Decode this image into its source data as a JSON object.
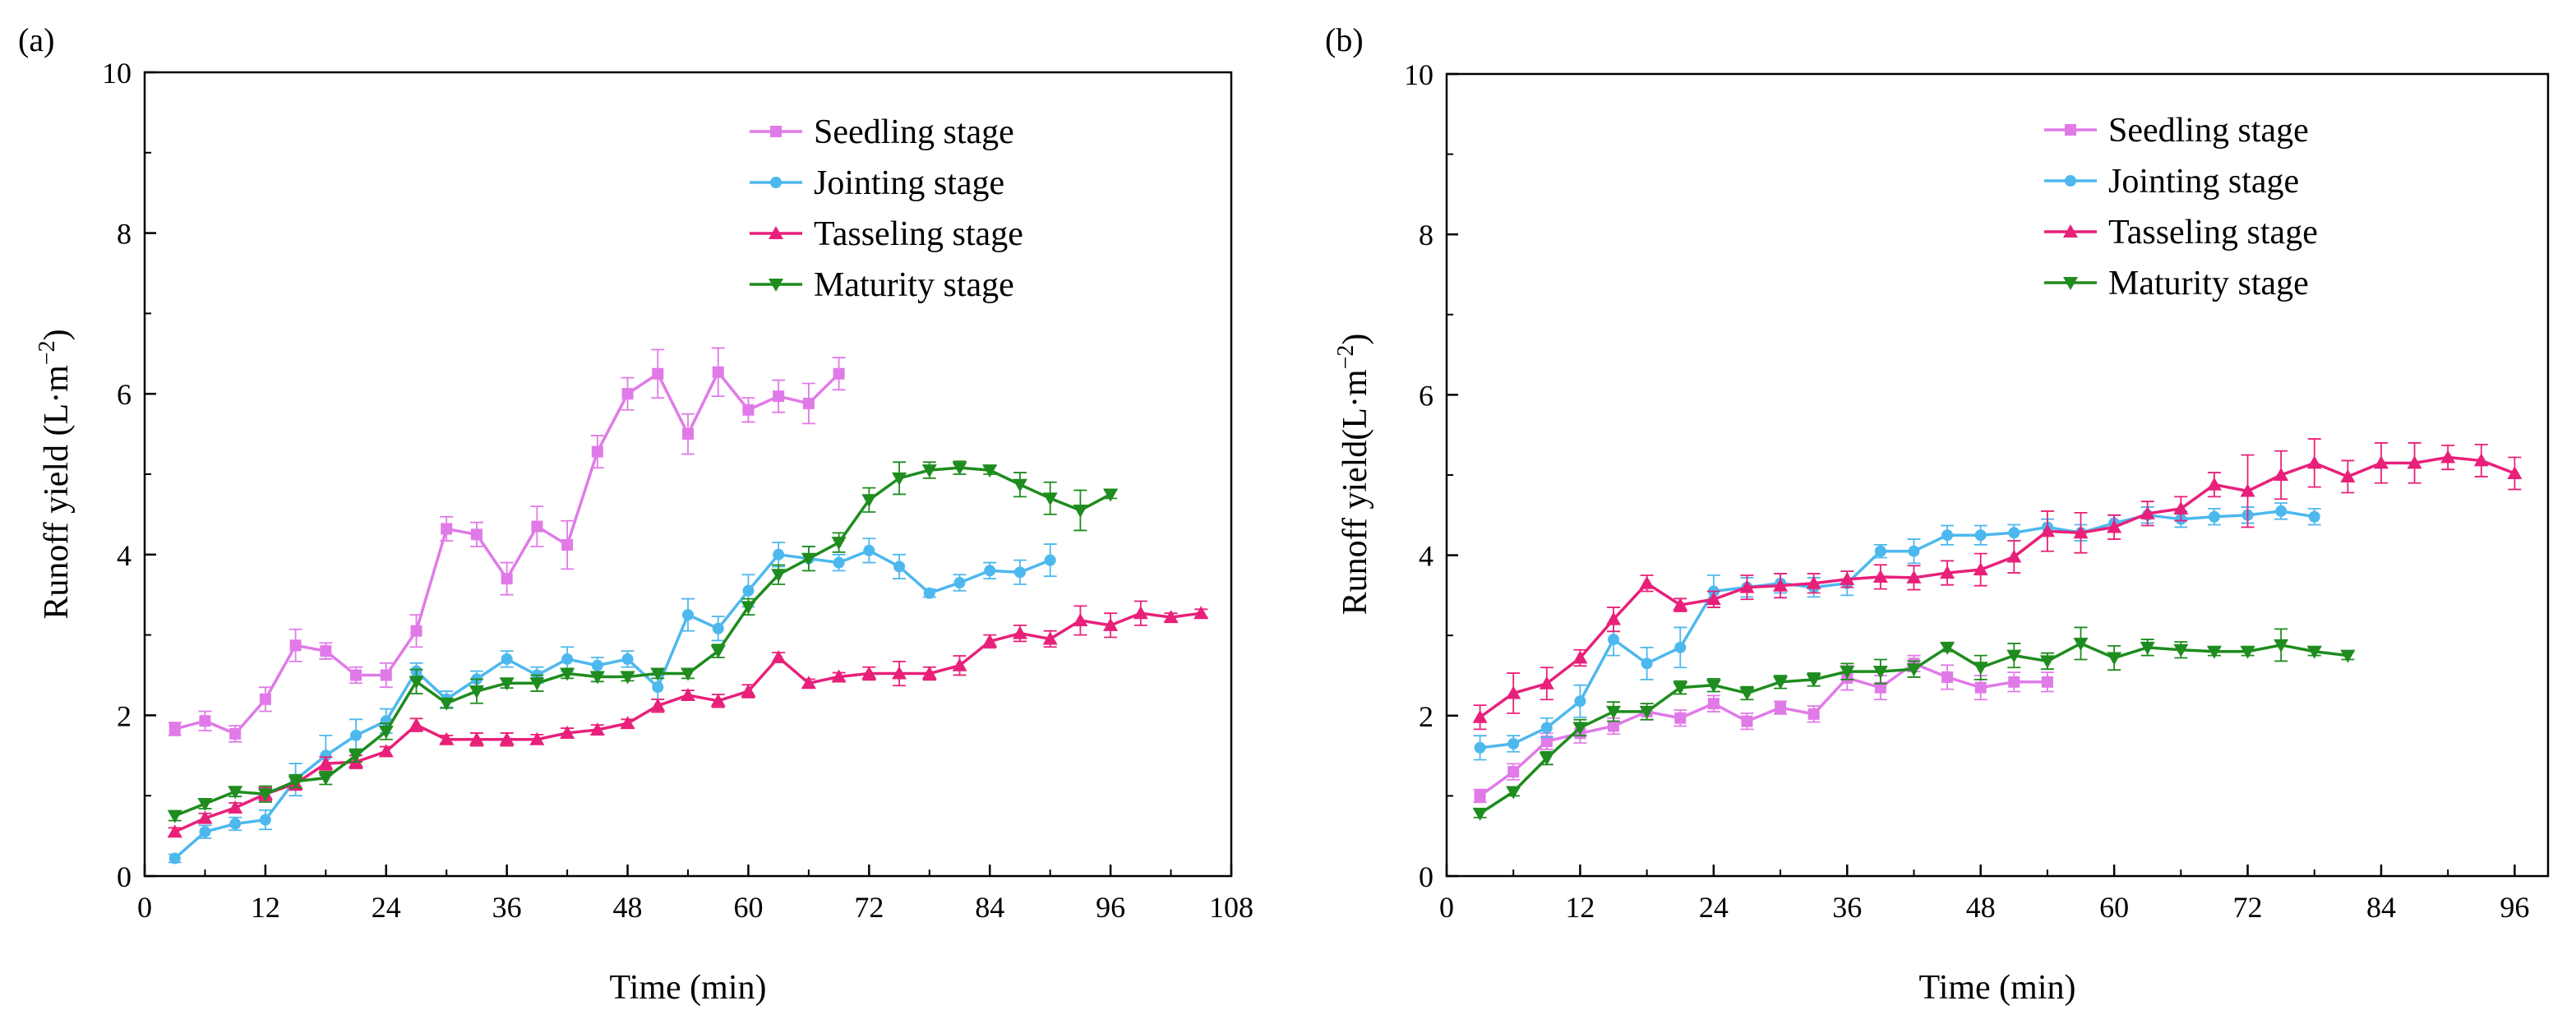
{
  "chart_data": [
    {
      "type": "line",
      "panel_label": "(a)",
      "xlabel": "Time (min)",
      "ylabel_main": "Runoff yield (L·m",
      "ylabel_sup": "−2",
      "ylabel_close": ")",
      "xlim": [
        0,
        108
      ],
      "ylim": [
        0,
        10
      ],
      "xticks": [
        0,
        12,
        24,
        36,
        48,
        60,
        72,
        84,
        96,
        108
      ],
      "yticks": [
        0,
        2,
        4,
        6,
        8,
        10
      ],
      "legend": "top-right",
      "series": [
        {
          "name": "Seedling stage",
          "color": "#e07ae8",
          "marker": "square",
          "x": [
            3,
            6,
            9,
            12,
            15,
            18,
            21,
            24,
            27,
            30,
            33,
            36,
            39,
            42,
            45,
            48,
            51,
            54,
            57,
            60,
            63,
            66,
            69
          ],
          "y": [
            1.83,
            1.93,
            1.77,
            2.2,
            2.87,
            2.8,
            2.5,
            2.5,
            3.05,
            4.32,
            4.25,
            3.7,
            4.35,
            4.12,
            5.28,
            6.0,
            6.25,
            5.5,
            6.27,
            5.8,
            5.97,
            5.88,
            6.25
          ],
          "err": [
            0.08,
            0.12,
            0.1,
            0.15,
            0.2,
            0.1,
            0.1,
            0.15,
            0.2,
            0.15,
            0.15,
            0.2,
            0.25,
            0.3,
            0.2,
            0.2,
            0.3,
            0.25,
            0.3,
            0.15,
            0.2,
            0.25,
            0.2
          ]
        },
        {
          "name": "Jointing stage",
          "color": "#4db8ee",
          "marker": "circle",
          "x": [
            3,
            6,
            9,
            12,
            15,
            18,
            21,
            24,
            27,
            30,
            33,
            36,
            39,
            42,
            45,
            48,
            51,
            54,
            57,
            60,
            63,
            66,
            69,
            72,
            75,
            78,
            81,
            84,
            87,
            90
          ],
          "y": [
            0.22,
            0.55,
            0.65,
            0.7,
            1.2,
            1.5,
            1.75,
            1.93,
            2.55,
            2.2,
            2.45,
            2.7,
            2.5,
            2.7,
            2.62,
            2.7,
            2.35,
            3.25,
            3.08,
            3.55,
            4.0,
            3.95,
            3.9,
            4.05,
            3.85,
            3.52,
            3.65,
            3.8,
            3.78,
            3.93
          ],
          "err": [
            0.05,
            0.08,
            0.08,
            0.12,
            0.2,
            0.25,
            0.2,
            0.15,
            0.1,
            0.1,
            0.1,
            0.1,
            0.1,
            0.15,
            0.1,
            0.1,
            0.15,
            0.2,
            0.15,
            0.2,
            0.15,
            0.15,
            0.1,
            0.15,
            0.15,
            0.05,
            0.1,
            0.1,
            0.15,
            0.2
          ]
        },
        {
          "name": "Tasseling stage",
          "color": "#e8207a",
          "marker": "triangle-up",
          "x": [
            3,
            6,
            9,
            12,
            15,
            18,
            21,
            24,
            27,
            30,
            33,
            36,
            39,
            42,
            45,
            48,
            51,
            54,
            57,
            60,
            63,
            66,
            69,
            72,
            75,
            78,
            81,
            84,
            87,
            90,
            93,
            96,
            99,
            102,
            105
          ],
          "y": [
            0.55,
            0.72,
            0.85,
            1.02,
            1.15,
            1.4,
            1.42,
            1.55,
            1.88,
            1.7,
            1.7,
            1.7,
            1.7,
            1.78,
            1.82,
            1.9,
            2.12,
            2.25,
            2.18,
            2.3,
            2.72,
            2.4,
            2.48,
            2.52,
            2.52,
            2.52,
            2.62,
            2.92,
            3.02,
            2.95,
            3.18,
            3.12,
            3.27,
            3.22,
            3.27
          ],
          "err": [
            0.05,
            0.06,
            0.06,
            0.08,
            0.08,
            0.08,
            0.08,
            0.06,
            0.08,
            0.05,
            0.08,
            0.08,
            0.06,
            0.06,
            0.06,
            0.05,
            0.08,
            0.06,
            0.08,
            0.08,
            0.06,
            0.05,
            0.05,
            0.08,
            0.15,
            0.08,
            0.12,
            0.08,
            0.1,
            0.1,
            0.18,
            0.15,
            0.15,
            0.05,
            0.05
          ]
        },
        {
          "name": "Maturity stage",
          "color": "#1e8c1e",
          "marker": "triangle-down",
          "x": [
            3,
            6,
            9,
            12,
            15,
            18,
            21,
            24,
            27,
            30,
            33,
            36,
            39,
            42,
            45,
            48,
            51,
            54,
            57,
            60,
            63,
            66,
            69,
            72,
            75,
            78,
            81,
            84,
            87,
            90,
            93,
            96
          ],
          "y": [
            0.75,
            0.9,
            1.05,
            1.02,
            1.18,
            1.22,
            1.5,
            1.8,
            2.42,
            2.15,
            2.3,
            2.4,
            2.4,
            2.52,
            2.48,
            2.48,
            2.52,
            2.52,
            2.8,
            3.35,
            3.75,
            3.95,
            4.15,
            4.68,
            4.95,
            5.05,
            5.08,
            5.05,
            4.87,
            4.7,
            4.55,
            4.75
          ],
          "err": [
            0.06,
            0.06,
            0.06,
            0.1,
            0.08,
            0.08,
            0.08,
            0.1,
            0.15,
            0.06,
            0.15,
            0.06,
            0.1,
            0.06,
            0.06,
            0.05,
            0.06,
            0.06,
            0.08,
            0.1,
            0.12,
            0.15,
            0.12,
            0.15,
            0.2,
            0.1,
            0.08,
            0.05,
            0.15,
            0.2,
            0.25,
            0.05
          ]
        }
      ]
    },
    {
      "type": "line",
      "panel_label": "(b)",
      "xlabel": "Time (min)",
      "ylabel_main": "Runoff yield(L·m",
      "ylabel_sup": "−2",
      "ylabel_close": ")",
      "xlim": [
        0,
        99
      ],
      "ylim": [
        0,
        10
      ],
      "xticks": [
        0,
        12,
        24,
        36,
        48,
        60,
        72,
        84,
        96
      ],
      "yticks": [
        0,
        2,
        4,
        6,
        8,
        10
      ],
      "legend": "top-right",
      "series": [
        {
          "name": "Seedling stage",
          "color": "#e07ae8",
          "marker": "square",
          "x": [
            3,
            6,
            9,
            12,
            15,
            18,
            21,
            24,
            27,
            30,
            33,
            36,
            39,
            42,
            45,
            48,
            51,
            54
          ],
          "y": [
            1.0,
            1.3,
            1.68,
            1.78,
            1.87,
            2.05,
            1.97,
            2.15,
            1.93,
            2.1,
            2.02,
            2.47,
            2.35,
            2.65,
            2.48,
            2.35,
            2.42,
            2.42
          ],
          "err": [
            0.08,
            0.1,
            0.1,
            0.12,
            0.1,
            0.1,
            0.1,
            0.1,
            0.1,
            0.08,
            0.1,
            0.15,
            0.15,
            0.1,
            0.15,
            0.15,
            0.12,
            0.12
          ]
        },
        {
          "name": "Jointing stage",
          "color": "#4db8ee",
          "marker": "circle",
          "x": [
            3,
            6,
            9,
            12,
            15,
            18,
            21,
            24,
            27,
            30,
            33,
            36,
            39,
            42,
            45,
            48,
            51,
            54,
            57,
            60,
            63,
            66,
            69,
            72,
            75,
            78
          ],
          "y": [
            1.6,
            1.65,
            1.85,
            2.18,
            2.95,
            2.65,
            2.85,
            3.55,
            3.6,
            3.65,
            3.6,
            3.65,
            4.05,
            4.05,
            4.25,
            4.25,
            4.28,
            4.35,
            4.28,
            4.4,
            4.5,
            4.45,
            4.48,
            4.5,
            4.55,
            4.48
          ],
          "err": [
            0.15,
            0.1,
            0.12,
            0.2,
            0.2,
            0.2,
            0.25,
            0.2,
            0.12,
            0.12,
            0.12,
            0.15,
            0.08,
            0.15,
            0.12,
            0.12,
            0.1,
            0.1,
            0.1,
            0.1,
            0.1,
            0.1,
            0.1,
            0.1,
            0.1,
            0.1
          ]
        },
        {
          "name": "Tasseling stage",
          "color": "#e8207a",
          "marker": "triangle-up",
          "x": [
            3,
            6,
            9,
            12,
            15,
            18,
            21,
            24,
            27,
            30,
            33,
            36,
            39,
            42,
            45,
            48,
            51,
            54,
            57,
            60,
            63,
            66,
            69,
            72,
            75,
            78,
            81,
            84,
            87,
            90,
            93,
            96
          ],
          "y": [
            1.98,
            2.28,
            2.4,
            2.72,
            3.2,
            3.65,
            3.38,
            3.45,
            3.6,
            3.62,
            3.65,
            3.7,
            3.73,
            3.72,
            3.78,
            3.82,
            3.98,
            4.3,
            4.28,
            4.35,
            4.52,
            4.58,
            4.88,
            4.8,
            5.0,
            5.15,
            4.98,
            5.15,
            5.15,
            5.22,
            5.18,
            5.02
          ],
          "err": [
            0.15,
            0.25,
            0.2,
            0.1,
            0.15,
            0.1,
            0.08,
            0.1,
            0.15,
            0.15,
            0.12,
            0.1,
            0.15,
            0.15,
            0.15,
            0.2,
            0.2,
            0.25,
            0.25,
            0.15,
            0.15,
            0.15,
            0.15,
            0.45,
            0.3,
            0.3,
            0.2,
            0.25,
            0.25,
            0.15,
            0.2,
            0.2
          ]
        },
        {
          "name": "Maturity stage",
          "color": "#1e8c1e",
          "marker": "triangle-down",
          "x": [
            3,
            6,
            9,
            12,
            15,
            18,
            21,
            24,
            27,
            30,
            33,
            36,
            39,
            42,
            45,
            48,
            51,
            54,
            57,
            60,
            63,
            66,
            69,
            72,
            75,
            78,
            81
          ],
          "y": [
            0.78,
            1.05,
            1.47,
            1.85,
            2.05,
            2.05,
            2.35,
            2.38,
            2.28,
            2.42,
            2.45,
            2.55,
            2.55,
            2.58,
            2.85,
            2.6,
            2.75,
            2.68,
            2.9,
            2.72,
            2.85,
            2.82,
            2.8,
            2.8,
            2.88,
            2.8,
            2.75
          ],
          "err": [
            0.05,
            0.05,
            0.08,
            0.1,
            0.12,
            0.1,
            0.08,
            0.08,
            0.08,
            0.08,
            0.08,
            0.1,
            0.15,
            0.1,
            0.05,
            0.15,
            0.15,
            0.1,
            0.2,
            0.15,
            0.1,
            0.1,
            0.05,
            0.05,
            0.2,
            0.05,
            0.05
          ]
        }
      ]
    }
  ]
}
